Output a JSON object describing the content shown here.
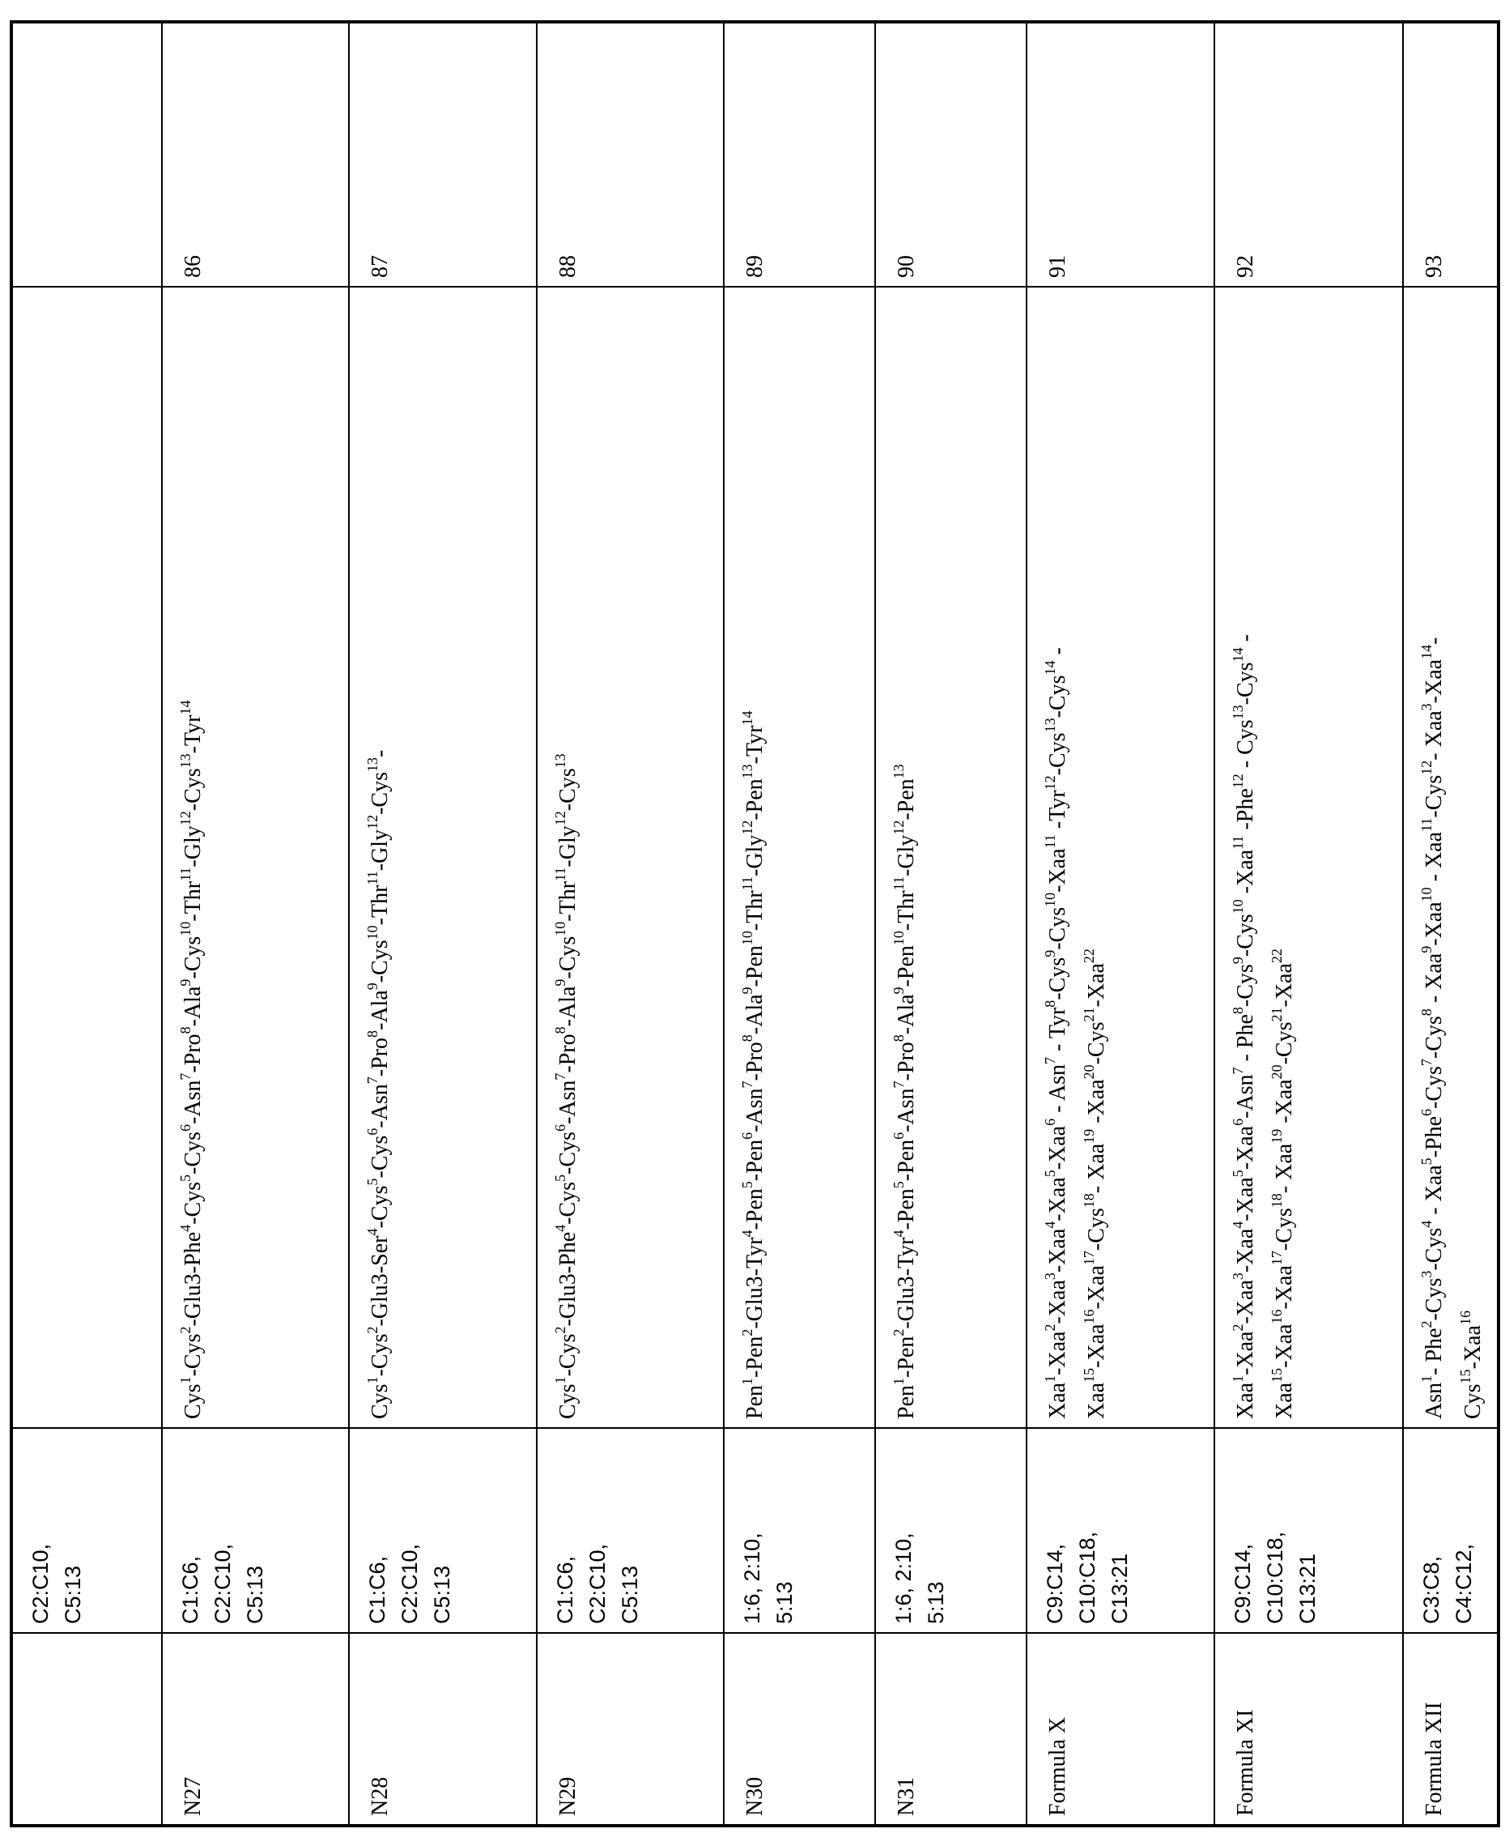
{
  "table": {
    "rows": [
      {
        "id": "",
        "bonds": "C2:C10,\nC5:13",
        "sequence": [],
        "seq_no": ""
      },
      {
        "id": "N27",
        "bonds": "C1:C6,\nC2:C10,\nC5:13",
        "sequence": [
          "Cys^1-Cys^2-Glu3-Phe^4-Cys^5-Cys^6-Asn^7-Pro^8-Ala^9-Cys^10-Thr^11-Gly^12-Cys^13-Tyr^14"
        ],
        "seq_no": "86"
      },
      {
        "id": "N28",
        "bonds": "C1:C6,\nC2:C10,\nC5:13",
        "sequence": [
          "Cys^1-Cys^2-Glu3-Ser^4-Cys^5-Cys^6-Asn^7-Pro^8-Ala^9-Cys^10-Thr^11-Gly^12-Cys^13-"
        ],
        "seq_no": "87"
      },
      {
        "id": "N29",
        "bonds": "C1:C6,\nC2:C10,\nC5:13",
        "sequence": [
          "Cys^1-Cys^2-Glu3-Phe^4-Cys^5-Cys^6-Asn^7-Pro^8-Ala^9-Cys^10-Thr^11-Gly^12-Cys^13"
        ],
        "seq_no": "88"
      },
      {
        "id": "N30",
        "bonds": "1:6, 2:10,\n5:13",
        "sequence": [
          "Pen^1-Pen^2-Glu3-Tyr^4-Pen^5-Pen^6-Asn^7-Pro^8-Ala^9-Pen^10-Thr^11-Gly^12-Pen^13-Tyr^14"
        ],
        "seq_no": "89"
      },
      {
        "id": "N31",
        "bonds": "1:6, 2:10,\n5:13",
        "sequence": [
          "Pen^1-Pen^2-Glu3-Tyr^4-Pen^5-Pen^6-Asn^7-Pro^8-Ala^9-Pen^10-Thr^11-Gly^12-Pen^13"
        ],
        "seq_no": "90"
      },
      {
        "id": "Formula X",
        "bonds": "C9:C14,\nC10:C18,\nC13:21",
        "sequence": [
          "Xaa^1-Xaa^2-Xaa^3-Xaa^4-Xaa^5-Xaa^6 - Asn^7 - Tyr^8-Cys^9-Cys^10-Xaa^11 -Tyr^12-Cys^13-Cys^14 -",
          "Xaa^15-Xaa^16-Xaa^17-Cys^18- Xaa^19 -Xaa^20-Cys^21-Xaa^22"
        ],
        "seq_no": "91"
      },
      {
        "id": "Formula XI",
        "bonds": "C9:C14,\nC10:C18,\nC13:21",
        "sequence": [
          "Xaa^1-Xaa^2-Xaa^3-Xaa^4-Xaa^5-Xaa^6-Asn^7 - Phe^8-Cys^9-Cys^10 -Xaa^11 -Phe^12 - Cys^13-Cys^14 -",
          "Xaa^15-Xaa^16-Xaa^17-Cys^18- Xaa^19 -Xaa^20-Cys^21-Xaa^22"
        ],
        "seq_no": "92"
      },
      {
        "id": "Formula XII",
        "bonds": "C3:C8,\nC4:C12,",
        "sequence": [
          "Asn^1- Phe^2-Cys^3-Cys^4 - Xaa^5-Phe^6-Cys^7-Cys^8 - Xaa^9-Xaa^10 - Xaa^11-Cys^12- Xaa^3-Xaa^14-",
          "Cys^15-Xaa^16"
        ],
        "seq_no": "93"
      }
    ]
  }
}
